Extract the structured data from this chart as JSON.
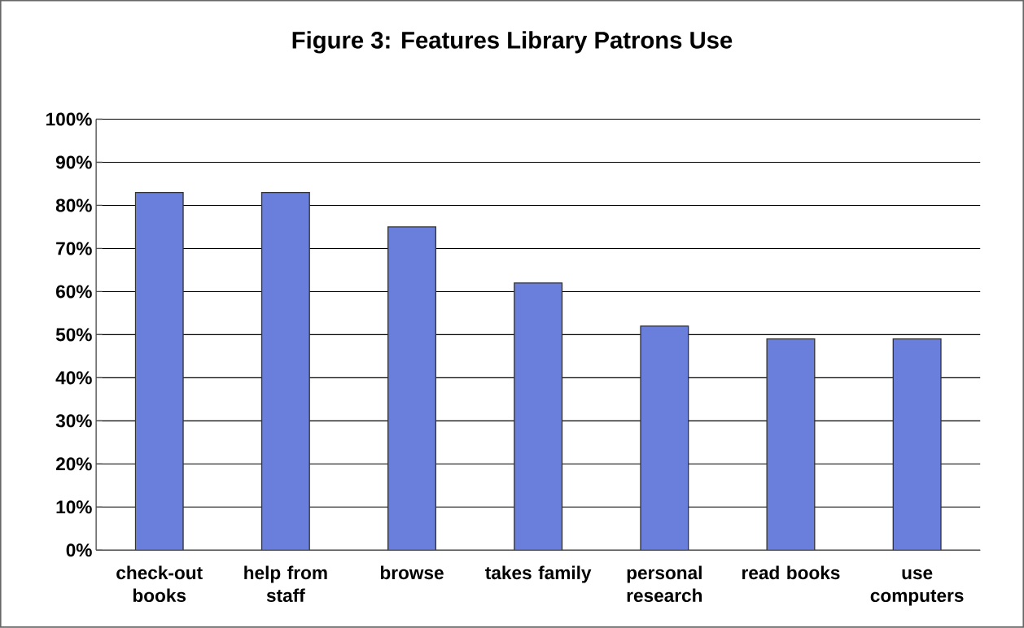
{
  "chart_data": {
    "type": "bar",
    "title": "Figure 3: Features Library Patrons Use",
    "categories": [
      "check-out books",
      "help from staff",
      "browse",
      "takes family",
      "personal research",
      "read books",
      "use computers"
    ],
    "values": [
      83,
      83,
      75,
      62,
      52,
      49,
      49
    ],
    "color": "#6a7fdb",
    "ylim": [
      0,
      100
    ],
    "yticks": [
      {
        "value": 0,
        "label": "0%"
      },
      {
        "value": 10,
        "label": "10%"
      },
      {
        "value": 20,
        "label": "20%"
      },
      {
        "value": 30,
        "label": "30%"
      },
      {
        "value": 40,
        "label": "40%"
      },
      {
        "value": 50,
        "label": "50%"
      },
      {
        "value": 60,
        "label": "60%"
      },
      {
        "value": 70,
        "label": "70%"
      },
      {
        "value": 80,
        "label": "80%"
      },
      {
        "value": 90,
        "label": "90%"
      },
      {
        "value": 100,
        "label": "100%"
      }
    ],
    "grid": "y"
  }
}
